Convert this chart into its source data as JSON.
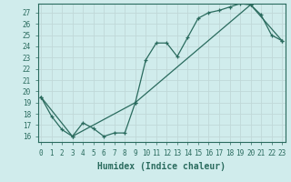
{
  "xlabel": "Humidex (Indice chaleur)",
  "background_color": "#d0ecec",
  "grid_color": "#c0d8d8",
  "line_color": "#2a6b5e",
  "xlim": [
    -0.3,
    23.3
  ],
  "ylim": [
    15.5,
    27.8
  ],
  "yticks": [
    16,
    17,
    18,
    19,
    20,
    21,
    22,
    23,
    24,
    25,
    26,
    27
  ],
  "xticks": [
    0,
    1,
    2,
    3,
    4,
    5,
    6,
    7,
    8,
    9,
    10,
    11,
    12,
    13,
    14,
    15,
    16,
    17,
    18,
    19,
    20,
    21,
    22,
    23
  ],
  "line1_x": [
    0,
    1,
    2,
    3,
    4,
    5,
    6,
    7,
    8,
    9,
    10,
    11,
    12,
    13,
    14,
    15,
    16,
    17,
    18,
    19,
    20,
    21,
    22,
    23
  ],
  "line1_y": [
    19.5,
    17.8,
    16.6,
    16.0,
    17.2,
    16.7,
    16.0,
    16.3,
    16.3,
    19.0,
    22.8,
    24.3,
    24.3,
    23.1,
    24.8,
    26.5,
    27.0,
    27.2,
    27.5,
    27.8,
    27.7,
    26.8,
    25.0,
    24.5
  ],
  "line2_x": [
    0,
    3,
    9,
    20,
    23
  ],
  "line2_y": [
    19.5,
    16.0,
    19.0,
    27.7,
    24.5
  ],
  "tick_fontsize": 5.5,
  "label_fontsize": 7.0
}
